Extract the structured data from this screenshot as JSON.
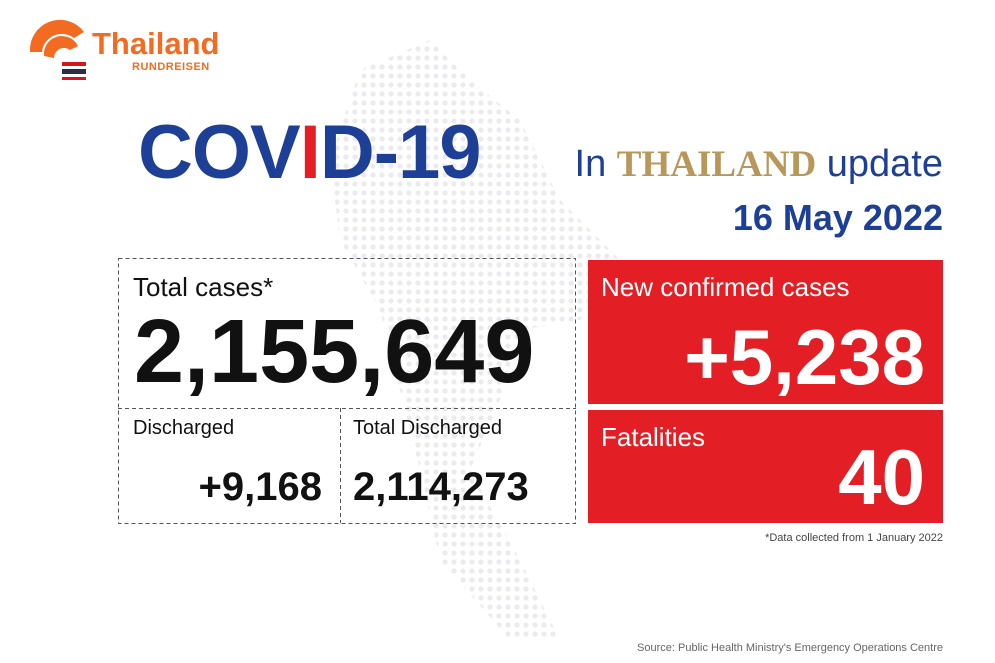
{
  "logo": {
    "name": "Thailand",
    "subtitle": "RUNDREISEN"
  },
  "header": {
    "title_parts": [
      "COV",
      "I",
      "D-19"
    ],
    "in": "In",
    "country": "THAILAND",
    "update": "update",
    "date": "16 May 2022"
  },
  "total_cases": {
    "label": "Total cases*",
    "value": "2,155,649"
  },
  "discharged": {
    "label": "Discharged",
    "value": "+9,168"
  },
  "total_discharged": {
    "label": "Total Discharged",
    "value": "2,114,273"
  },
  "new_cases": {
    "label": "New confirmed cases",
    "value": "+5,238"
  },
  "fatalities": {
    "label": "Fatalities",
    "value": "40"
  },
  "footnote": "*Data collected from 1 January 2022",
  "source": "Source: Public Health Ministry's Emergency Operations Centre"
}
